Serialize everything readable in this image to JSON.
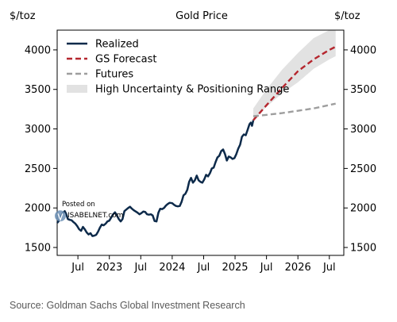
{
  "chart_data": {
    "type": "line",
    "title": "Gold Price",
    "y_unit_left": "$/toz",
    "y_unit_right": "$/toz",
    "xlim": [
      2022.17,
      2026.73
    ],
    "ylim": [
      1400,
      4250
    ],
    "y_ticks": [
      1500,
      2000,
      2500,
      3000,
      3500,
      4000
    ],
    "x_ticks": [
      {
        "t": 2022.5,
        "label": "Jul"
      },
      {
        "t": 2023.0,
        "label": "2023"
      },
      {
        "t": 2023.5,
        "label": "Jul"
      },
      {
        "t": 2024.0,
        "label": "2024"
      },
      {
        "t": 2024.5,
        "label": "Jul"
      },
      {
        "t": 2025.0,
        "label": "2025"
      },
      {
        "t": 2025.5,
        "label": "Jul"
      },
      {
        "t": 2026.0,
        "label": "2026"
      },
      {
        "t": 2026.5,
        "label": "Jul"
      }
    ],
    "legend_position": "top-left",
    "grid": false,
    "series": [
      {
        "name": "Realized",
        "style": "solid",
        "color": "#0d2a4a",
        "points": [
          [
            2022.17,
            1810
          ],
          [
            2022.2,
            1840
          ],
          [
            2022.23,
            1900
          ],
          [
            2022.26,
            1935
          ],
          [
            2022.29,
            1960
          ],
          [
            2022.31,
            1930
          ],
          [
            2022.34,
            1860
          ],
          [
            2022.37,
            1850
          ],
          [
            2022.4,
            1845
          ],
          [
            2022.43,
            1820
          ],
          [
            2022.46,
            1800
          ],
          [
            2022.49,
            1770
          ],
          [
            2022.52,
            1730
          ],
          [
            2022.55,
            1710
          ],
          [
            2022.58,
            1760
          ],
          [
            2022.61,
            1730
          ],
          [
            2022.64,
            1690
          ],
          [
            2022.67,
            1665
          ],
          [
            2022.7,
            1680
          ],
          [
            2022.73,
            1645
          ],
          [
            2022.76,
            1650
          ],
          [
            2022.79,
            1660
          ],
          [
            2022.82,
            1700
          ],
          [
            2022.85,
            1750
          ],
          [
            2022.88,
            1790
          ],
          [
            2022.91,
            1780
          ],
          [
            2022.94,
            1800
          ],
          [
            2022.97,
            1830
          ],
          [
            2023.0,
            1840
          ],
          [
            2023.03,
            1880
          ],
          [
            2023.06,
            1920
          ],
          [
            2023.09,
            1945
          ],
          [
            2023.12,
            1905
          ],
          [
            2023.15,
            1860
          ],
          [
            2023.18,
            1830
          ],
          [
            2023.21,
            1860
          ],
          [
            2023.24,
            1960
          ],
          [
            2023.27,
            1980
          ],
          [
            2023.3,
            2000
          ],
          [
            2023.33,
            2015
          ],
          [
            2023.36,
            1990
          ],
          [
            2023.39,
            1970
          ],
          [
            2023.42,
            1955
          ],
          [
            2023.45,
            1940
          ],
          [
            2023.48,
            1920
          ],
          [
            2023.51,
            1935
          ],
          [
            2023.54,
            1955
          ],
          [
            2023.57,
            1950
          ],
          [
            2023.6,
            1920
          ],
          [
            2023.63,
            1915
          ],
          [
            2023.66,
            1920
          ],
          [
            2023.69,
            1905
          ],
          [
            2023.72,
            1835
          ],
          [
            2023.75,
            1830
          ],
          [
            2023.78,
            1940
          ],
          [
            2023.81,
            1990
          ],
          [
            2023.84,
            1985
          ],
          [
            2023.87,
            2000
          ],
          [
            2023.9,
            2030
          ],
          [
            2023.93,
            2050
          ],
          [
            2023.96,
            2065
          ],
          [
            2024.0,
            2060
          ],
          [
            2024.03,
            2040
          ],
          [
            2024.06,
            2025
          ],
          [
            2024.09,
            2020
          ],
          [
            2024.12,
            2025
          ],
          [
            2024.15,
            2080
          ],
          [
            2024.18,
            2160
          ],
          [
            2024.21,
            2180
          ],
          [
            2024.24,
            2230
          ],
          [
            2024.27,
            2330
          ],
          [
            2024.3,
            2380
          ],
          [
            2024.33,
            2320
          ],
          [
            2024.36,
            2350
          ],
          [
            2024.39,
            2410
          ],
          [
            2024.42,
            2350
          ],
          [
            2024.45,
            2330
          ],
          [
            2024.48,
            2320
          ],
          [
            2024.51,
            2360
          ],
          [
            2024.54,
            2420
          ],
          [
            2024.57,
            2400
          ],
          [
            2024.6,
            2440
          ],
          [
            2024.63,
            2500
          ],
          [
            2024.66,
            2510
          ],
          [
            2024.69,
            2580
          ],
          [
            2024.72,
            2640
          ],
          [
            2024.75,
            2660
          ],
          [
            2024.78,
            2720
          ],
          [
            2024.81,
            2740
          ],
          [
            2024.84,
            2680
          ],
          [
            2024.87,
            2600
          ],
          [
            2024.9,
            2650
          ],
          [
            2024.93,
            2640
          ],
          [
            2024.96,
            2620
          ],
          [
            2024.99,
            2630
          ],
          [
            2025.02,
            2680
          ],
          [
            2025.05,
            2750
          ],
          [
            2025.08,
            2800
          ],
          [
            2025.11,
            2900
          ],
          [
            2025.14,
            2930
          ],
          [
            2025.17,
            2920
          ],
          [
            2025.2,
            2990
          ],
          [
            2025.23,
            3060
          ],
          [
            2025.25,
            3080
          ],
          [
            2025.27,
            3040
          ],
          [
            2025.29,
            3110
          ]
        ]
      },
      {
        "name": "GS Forecast",
        "style": "dashed",
        "color": "#b5262e",
        "points": [
          [
            2025.29,
            3110
          ],
          [
            2025.5,
            3300
          ],
          [
            2025.75,
            3520
          ],
          [
            2026.0,
            3730
          ],
          [
            2026.25,
            3880
          ],
          [
            2026.5,
            4000
          ],
          [
            2026.6,
            4040
          ]
        ]
      },
      {
        "name": "Futures",
        "style": "dashed",
        "color": "#9e9e9e",
        "points": [
          [
            2025.29,
            3160
          ],
          [
            2025.75,
            3200
          ],
          [
            2026.25,
            3260
          ],
          [
            2026.6,
            3320
          ]
        ]
      },
      {
        "name": "High Uncertainty & Positioning Range",
        "type": "area",
        "color": "#e2e2e2",
        "upper": [
          [
            2025.29,
            3260
          ],
          [
            2025.5,
            3500
          ],
          [
            2025.75,
            3750
          ],
          [
            2026.0,
            3960
          ],
          [
            2026.25,
            4150
          ],
          [
            2026.5,
            4250
          ],
          [
            2026.6,
            4250
          ]
        ],
        "lower": [
          [
            2025.29,
            3120
          ],
          [
            2025.5,
            3280
          ],
          [
            2025.75,
            3450
          ],
          [
            2026.0,
            3590
          ],
          [
            2026.25,
            3760
          ],
          [
            2026.5,
            3880
          ],
          [
            2026.6,
            3920
          ]
        ]
      }
    ],
    "annotations": [
      {
        "text_line1": "Posted on",
        "text_line2": "ISABELNET.com",
        "t": 2022.22,
        "y": 2040
      }
    ],
    "source": "Source: Goldman Sachs Global Investment Research"
  }
}
